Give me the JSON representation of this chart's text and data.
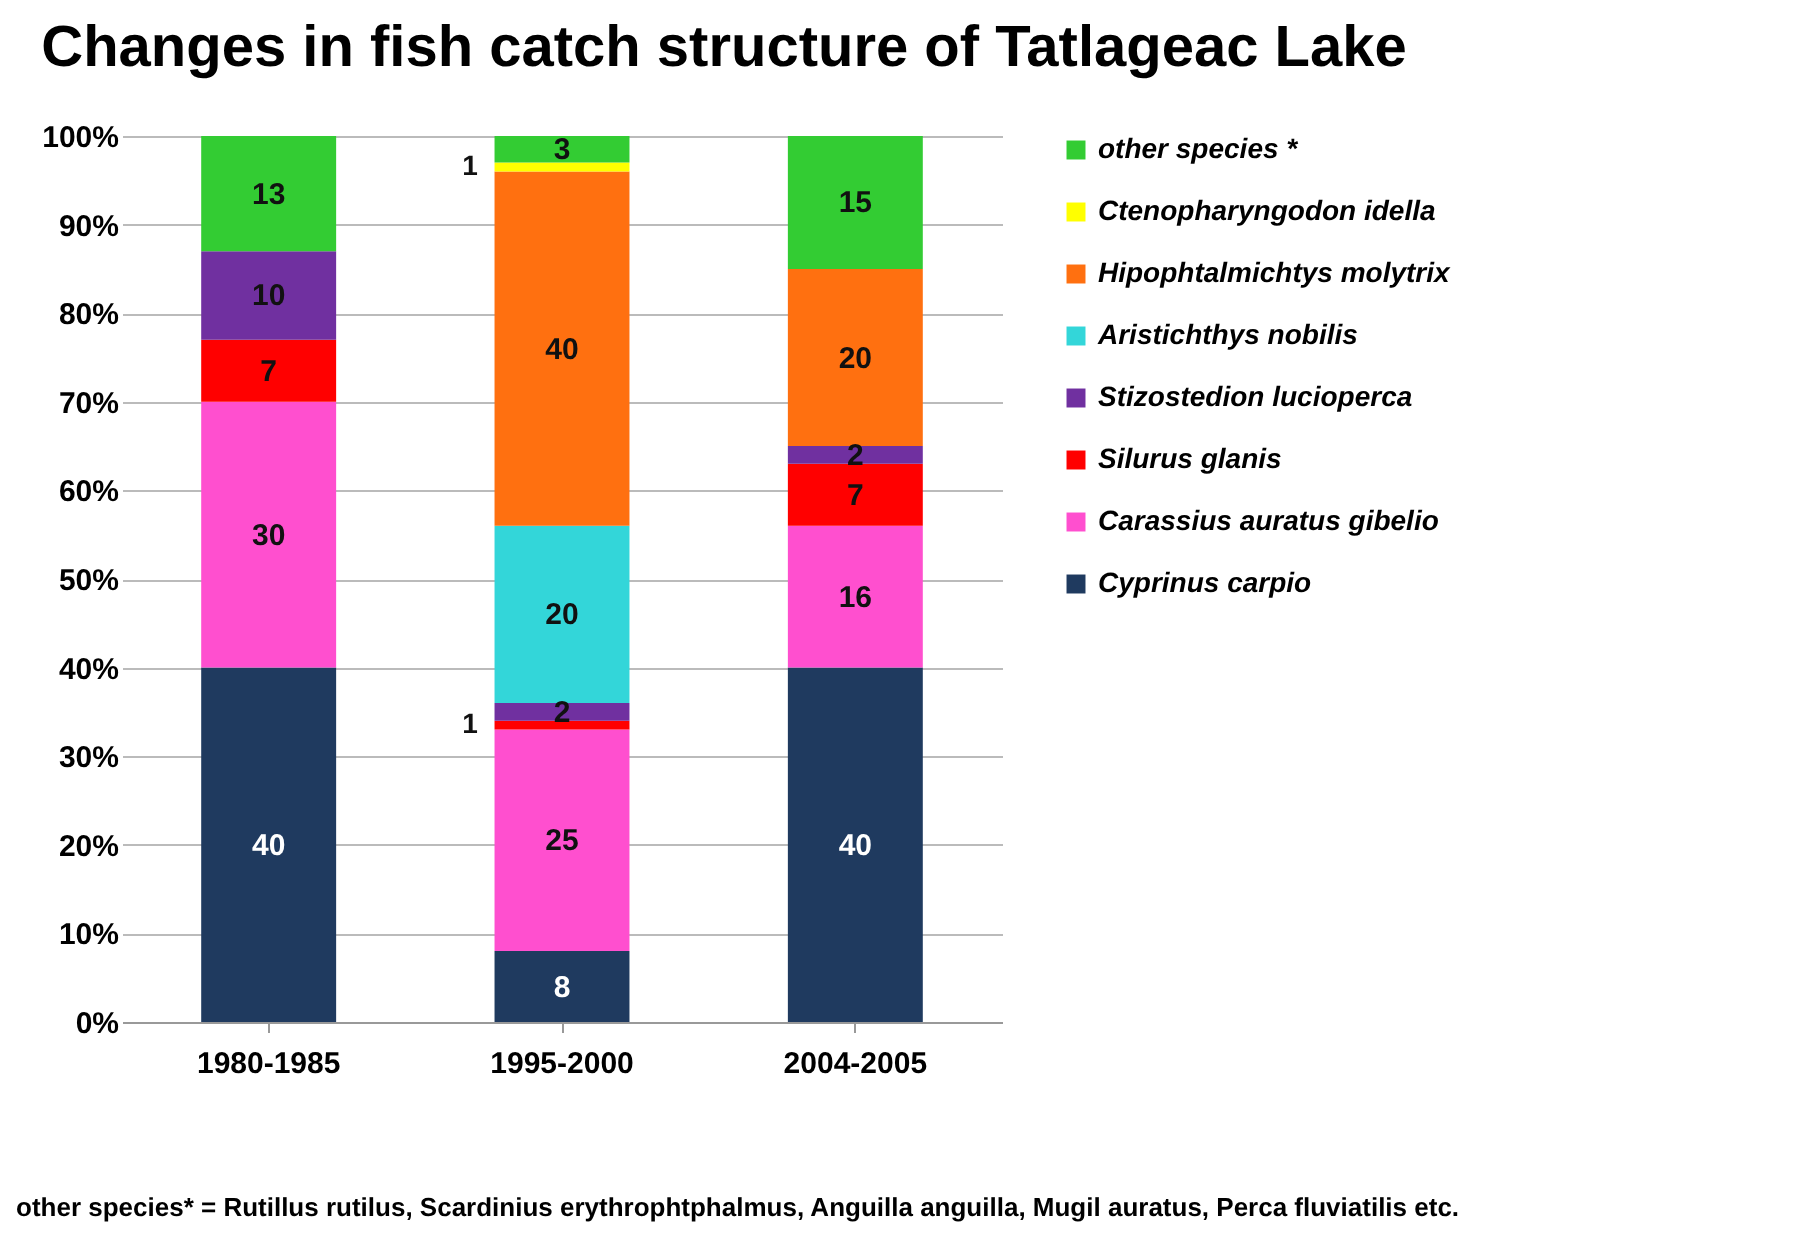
{
  "chart_data": {
    "type": "bar",
    "title": "Changes in fish catch structure of Tatlageac Lake",
    "stacked": true,
    "data_labels": true,
    "grid": "y",
    "legend": "right",
    "categories": [
      "1980-1985",
      "1995-2000",
      "2004-2005"
    ],
    "series": [
      {
        "name": "Cyprinus carpio",
        "color": "#1f3a5f",
        "values": [
          40,
          8,
          40
        ]
      },
      {
        "name": "Carassius auratus gibelio",
        "color": "#ff4fcf",
        "values": [
          30,
          25,
          16
        ]
      },
      {
        "name": "Silurus glanis",
        "color": "#ff0000",
        "values": [
          7,
          1,
          7
        ]
      },
      {
        "name": "Stizostedion lucioperca",
        "color": "#7030a0",
        "values": [
          10,
          2,
          2
        ]
      },
      {
        "name": "Aristichthys nobilis",
        "color": "#33d6d9",
        "values": [
          null,
          20,
          null
        ]
      },
      {
        "name": "Hipophtalmichtys molytrix",
        "color": "#ff7010",
        "values": [
          null,
          40,
          20
        ]
      },
      {
        "name": "Ctenopharyngodon idella",
        "color": "#ffff00",
        "values": [
          null,
          1,
          null
        ]
      },
      {
        "name": "other species *",
        "color": "#33cc33",
        "values": [
          13,
          3,
          15
        ]
      }
    ],
    "ylim": [
      0,
      100
    ],
    "yticks": [
      {
        "value": 0,
        "label": "0%"
      },
      {
        "value": 10,
        "label": "10%"
      },
      {
        "value": 20,
        "label": "20%"
      },
      {
        "value": 30,
        "label": "30%"
      },
      {
        "value": 40,
        "label": "40%"
      },
      {
        "value": 50,
        "label": "50%"
      },
      {
        "value": 60,
        "label": "60%"
      },
      {
        "value": 70,
        "label": "70%"
      },
      {
        "value": 80,
        "label": "80%"
      },
      {
        "value": 90,
        "label": "90%"
      },
      {
        "value": 100,
        "label": "100%"
      }
    ],
    "annotations": [
      "other species* = Rutillus rutilus, Scardinius erythrophtphalmus, Anguilla anguilla, Mugil auratus, Perca fluviatilis    etc."
    ]
  }
}
